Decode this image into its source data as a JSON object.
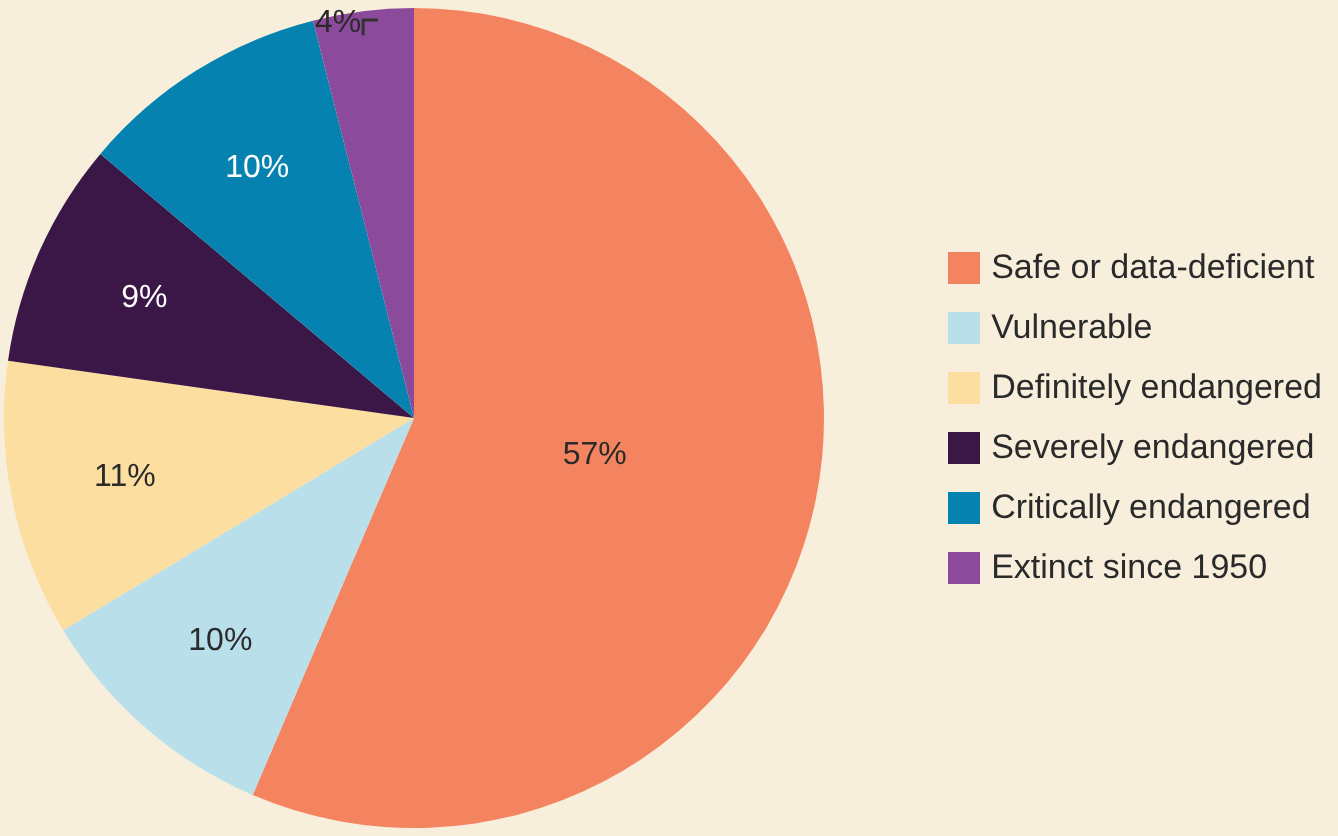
{
  "chart_data": {
    "type": "pie",
    "categories": [
      "Safe or data-deficient",
      "Vulnerable",
      "Definitely endangered",
      "Severely endangered",
      "Critically endangered",
      "Extinct since 1950"
    ],
    "values": [
      57,
      10,
      11,
      9,
      10,
      4
    ],
    "colors": [
      "#f4845f",
      "#b9e0ea",
      "#fbdea0",
      "#3b1747",
      "#0582b0",
      "#8c4a9c"
    ],
    "value_labels": [
      "57%",
      "10%",
      "11%",
      "9%",
      "10%",
      "4%"
    ],
    "legend": "right"
  }
}
